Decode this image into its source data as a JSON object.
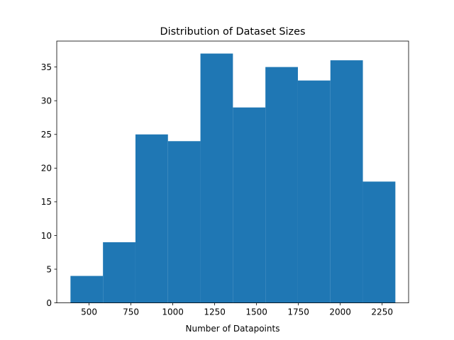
{
  "chart_data": {
    "type": "bar",
    "title": "Distribution of Dataset Sizes",
    "xlabel": "Number of Datapoints",
    "ylabel": "",
    "xlim": [
      307,
      2408
    ],
    "ylim": [
      0,
      38.85
    ],
    "x_ticks": [
      500,
      750,
      1000,
      1250,
      1500,
      1750,
      2000,
      2250
    ],
    "y_ticks": [
      0,
      5,
      10,
      15,
      20,
      25,
      30,
      35
    ],
    "bin_edges": [
      389,
      583,
      777,
      971,
      1165,
      1359,
      1553,
      1747,
      1941,
      2135,
      2329
    ],
    "values": [
      4,
      9,
      25,
      24,
      37,
      29,
      35,
      33,
      36,
      18
    ],
    "bar_color": "#1f77b4",
    "grid": false,
    "legend": "none"
  }
}
